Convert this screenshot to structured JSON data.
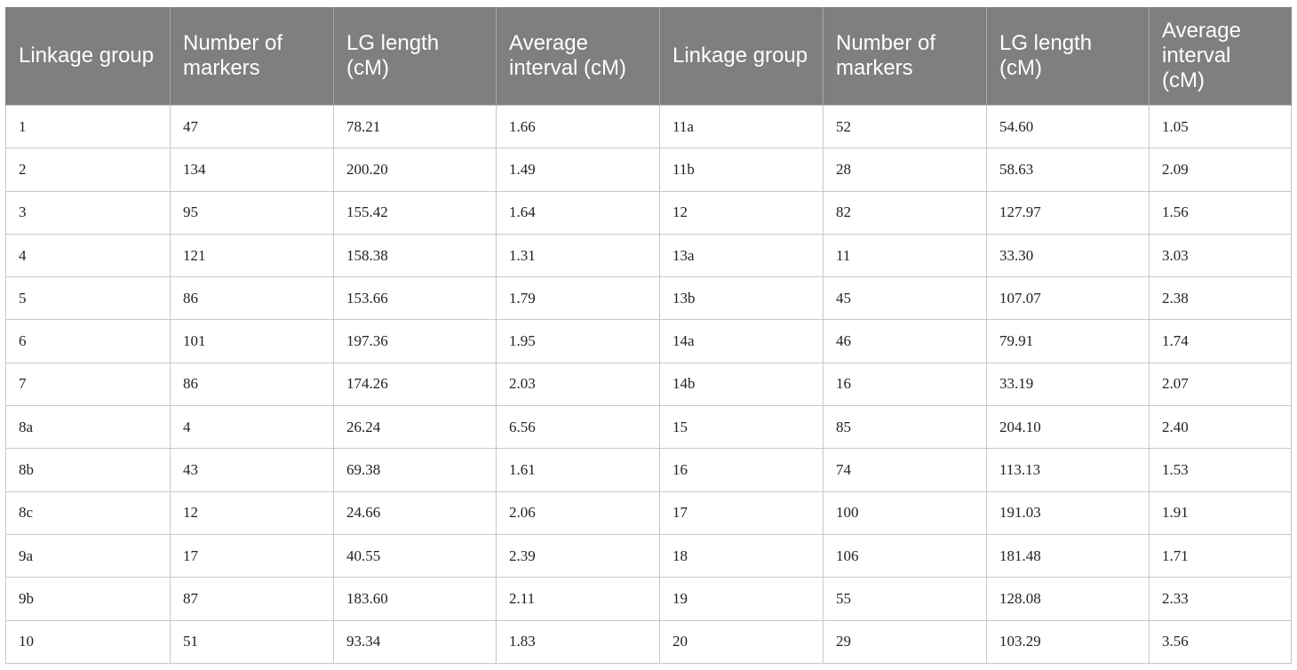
{
  "table": {
    "headers": [
      "Linkage group",
      "Number of markers",
      "LG length (cM)",
      "Average interval (cM)",
      "Linkage group",
      "Number of markers",
      "LG length (cM)",
      "Average interval (cM)"
    ],
    "rows": [
      [
        "1",
        "47",
        "78.21",
        "1.66",
        "11a",
        "52",
        "54.60",
        "1.05"
      ],
      [
        "2",
        "134",
        "200.20",
        "1.49",
        "11b",
        "28",
        "58.63",
        "2.09"
      ],
      [
        "3",
        "95",
        "155.42",
        "1.64",
        "12",
        "82",
        "127.97",
        "1.56"
      ],
      [
        "4",
        "121",
        "158.38",
        "1.31",
        "13a",
        "11",
        "33.30",
        "3.03"
      ],
      [
        "5",
        "86",
        "153.66",
        "1.79",
        "13b",
        "45",
        "107.07",
        "2.38"
      ],
      [
        "6",
        "101",
        "197.36",
        "1.95",
        "14a",
        "46",
        "79.91",
        "1.74"
      ],
      [
        "7",
        "86",
        "174.26",
        "2.03",
        "14b",
        "16",
        "33.19",
        "2.07"
      ],
      [
        "8a",
        "4",
        "26.24",
        "6.56",
        "15",
        "85",
        "204.10",
        "2.40"
      ],
      [
        "8b",
        "43",
        "69.38",
        "1.61",
        "16",
        "74",
        "113.13",
        "1.53"
      ],
      [
        "8c",
        "12",
        "24.66",
        "2.06",
        "17",
        "100",
        "191.03",
        "1.91"
      ],
      [
        "9a",
        "17",
        "40.55",
        "2.39",
        "18",
        "106",
        "181.48",
        "1.71"
      ],
      [
        "9b",
        "87",
        "183.60",
        "2.11",
        "19",
        "55",
        "128.08",
        "2.33"
      ],
      [
        "10",
        "51",
        "93.34",
        "1.83",
        "20",
        "29",
        "103.29",
        "3.56"
      ]
    ]
  }
}
